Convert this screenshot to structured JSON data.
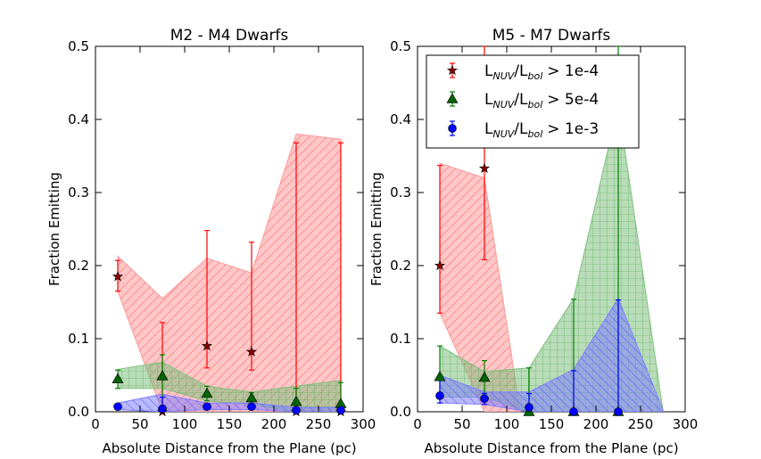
{
  "chart_data": [
    {
      "type": "line",
      "title": "M2 - M4 Dwarfs",
      "xlabel": "Absolute Distance from the Plane (pc)",
      "ylabel": "Fraction Emitting",
      "xlim": [
        0,
        300
      ],
      "ylim": [
        0,
        0.5
      ],
      "xticks": [
        "0",
        "50",
        "100",
        "150",
        "200",
        "250",
        "300"
      ],
      "yticks": [
        "0.0",
        "0.1",
        "0.2",
        "0.3",
        "0.4",
        "0.5"
      ],
      "series": [
        {
          "name": "red",
          "color": "#ff0000",
          "fill": "#ff9999",
          "marker": "star",
          "points": [
            {
              "x": 25,
              "y": 0.185,
              "lo": 0.165,
              "hi": 0.207
            },
            {
              "x": 75,
              "y": 0.0,
              "lo": 0.0,
              "hi": 0.122
            },
            {
              "x": 125,
              "y": 0.09,
              "lo": 0.06,
              "hi": 0.248
            },
            {
              "x": 175,
              "y": 0.082,
              "lo": 0.057,
              "hi": 0.232
            },
            {
              "x": 225,
              "y": 0.0,
              "lo": 0.0,
              "hi": 0.368
            },
            {
              "x": 275,
              "y": 0.0,
              "lo": 0.0,
              "hi": 0.368
            }
          ],
          "band": {
            "x": [
              25,
              75,
              125,
              175,
              225,
              275
            ],
            "lower": [
              0.165,
              0.0,
              0.0,
              0.0,
              0.0,
              0.0
            ],
            "upper": [
              0.213,
              0.155,
              0.21,
              0.19,
              0.38,
              0.373
            ]
          }
        },
        {
          "name": "green",
          "color": "#008000",
          "fill": "#80c080",
          "marker": "triangle",
          "points": [
            {
              "x": 25,
              "y": 0.045,
              "lo": 0.032,
              "hi": 0.057
            },
            {
              "x": 75,
              "y": 0.049,
              "lo": 0.0,
              "hi": 0.078
            },
            {
              "x": 125,
              "y": 0.025,
              "lo": 0.015,
              "hi": 0.035
            },
            {
              "x": 175,
              "y": 0.019,
              "lo": 0.01,
              "hi": 0.026
            },
            {
              "x": 225,
              "y": 0.014,
              "lo": 0.0,
              "hi": 0.032
            },
            {
              "x": 275,
              "y": 0.011,
              "lo": 0.0,
              "hi": 0.04
            }
          ],
          "band": {
            "x": [
              25,
              75,
              125,
              175,
              225,
              275
            ],
            "lower": [
              0.032,
              0.032,
              0.015,
              0.01,
              0.0,
              0.0
            ],
            "upper": [
              0.058,
              0.068,
              0.035,
              0.027,
              0.035,
              0.043
            ]
          }
        },
        {
          "name": "blue",
          "color": "#0000ff",
          "fill": "#8080ff",
          "marker": "circle",
          "points": [
            {
              "x": 25,
              "y": 0.007,
              "lo": 0.003,
              "hi": 0.011
            },
            {
              "x": 75,
              "y": 0.004,
              "lo": 0.0,
              "hi": 0.02
            },
            {
              "x": 125,
              "y": 0.007,
              "lo": 0.003,
              "hi": 0.011
            },
            {
              "x": 175,
              "y": 0.007,
              "lo": 0.003,
              "hi": 0.011
            },
            {
              "x": 225,
              "y": 0.002,
              "lo": 0.0,
              "hi": 0.006
            },
            {
              "x": 275,
              "y": 0.002,
              "lo": 0.0,
              "hi": 0.006
            }
          ],
          "band": {
            "x": [
              25,
              75,
              125,
              175,
              225,
              275
            ],
            "lower": [
              0.003,
              0.0,
              0.003,
              0.003,
              0.0,
              0.0
            ],
            "upper": [
              0.012,
              0.024,
              0.012,
              0.012,
              0.006,
              0.006
            ]
          }
        }
      ]
    },
    {
      "type": "line",
      "title": "M5 - M7 Dwarfs",
      "xlabel": "Absolute Distance from the Plane (pc)",
      "ylabel": "Fraction Emitting",
      "xlim": [
        0,
        300
      ],
      "ylim": [
        0,
        0.5
      ],
      "xticks": [
        "0",
        "50",
        "100",
        "150",
        "200",
        "250",
        "300"
      ],
      "yticks": [
        "0.0",
        "0.1",
        "0.2",
        "0.3",
        "0.4",
        "0.5"
      ],
      "legend": {
        "placement": "top-left",
        "entries": [
          {
            "sub1": "NUV",
            "sub2": "bol",
            "threshold": "> 1e-4",
            "series": "red"
          },
          {
            "sub1": "NUV",
            "sub2": "bol",
            "threshold": "> 5e-4",
            "series": "green"
          },
          {
            "sub1": "NUV",
            "sub2": "bol",
            "threshold": "> 1e-3",
            "series": "blue"
          }
        ]
      },
      "series": [
        {
          "name": "red",
          "color": "#ff0000",
          "fill": "#ff9999",
          "marker": "star",
          "points": [
            {
              "x": 25,
              "y": 0.2,
              "lo": 0.135,
              "hi": 0.337
            },
            {
              "x": 75,
              "y": 0.333,
              "lo": 0.208,
              "hi": 0.5
            }
          ],
          "band": {
            "x": [
              25,
              75,
              115
            ],
            "lower": [
              0.135,
              0.0,
              0.0
            ],
            "upper": [
              0.34,
              0.32,
              0.0
            ]
          }
        },
        {
          "name": "green",
          "color": "#008000",
          "fill": "#80c080",
          "marker": "triangle",
          "points": [
            {
              "x": 25,
              "y": 0.048,
              "lo": 0.025,
              "hi": 0.09
            },
            {
              "x": 75,
              "y": 0.047,
              "lo": 0.025,
              "hi": 0.07
            },
            {
              "x": 125,
              "y": 0.0,
              "lo": 0.0,
              "hi": 0.06
            },
            {
              "x": 175,
              "y": 0.0,
              "lo": 0.0,
              "hi": 0.154
            },
            {
              "x": 225,
              "y": 0.0,
              "lo": 0.0,
              "hi": 0.5
            }
          ],
          "band": {
            "x": [
              25,
              75,
              125,
              175,
              225,
              275
            ],
            "lower": [
              0.02,
              0.02,
              0.0,
              0.0,
              0.0,
              0.0
            ],
            "upper": [
              0.09,
              0.055,
              0.06,
              0.155,
              0.42,
              0.003
            ]
          }
        },
        {
          "name": "blue",
          "color": "#0000ff",
          "fill": "#8080ff",
          "marker": "circle",
          "points": [
            {
              "x": 25,
              "y": 0.022,
              "lo": 0.012,
              "hi": 0.045
            },
            {
              "x": 75,
              "y": 0.018,
              "lo": 0.01,
              "hi": 0.025
            },
            {
              "x": 125,
              "y": 0.006,
              "lo": 0.0,
              "hi": 0.025
            },
            {
              "x": 175,
              "y": 0.0,
              "lo": 0.0,
              "hi": 0.056
            },
            {
              "x": 225,
              "y": 0.0,
              "lo": 0.0,
              "hi": 0.153
            }
          ],
          "band": {
            "x": [
              25,
              75,
              125,
              175,
              225,
              275
            ],
            "lower": [
              0.012,
              0.01,
              0.0,
              0.0,
              0.0,
              0.0
            ],
            "upper": [
              0.05,
              0.027,
              0.027,
              0.058,
              0.155,
              0.003
            ]
          }
        }
      ]
    }
  ]
}
